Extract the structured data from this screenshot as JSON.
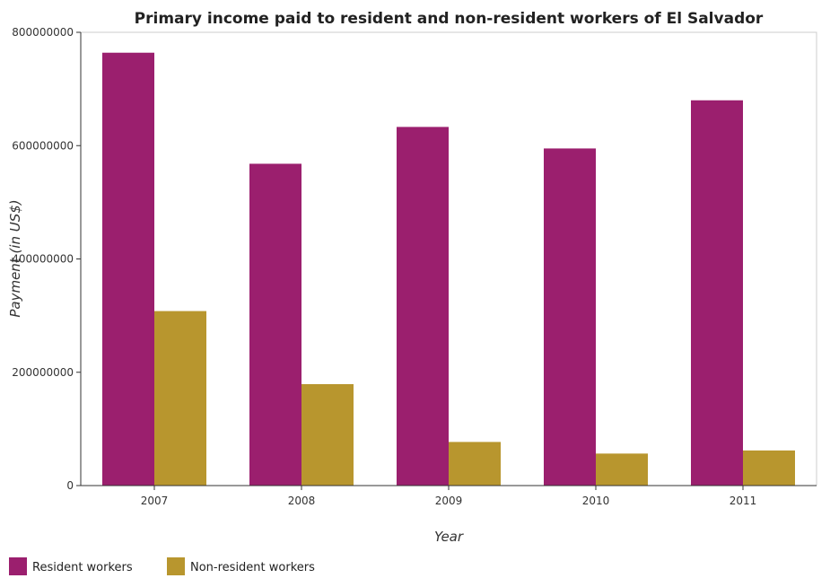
{
  "chart_data": {
    "type": "bar",
    "title": "Primary income paid to resident and non-resident workers of El Salvador",
    "xlabel": "Year",
    "ylabel": "Payment (in US$)",
    "categories": [
      "2007",
      "2008",
      "2009",
      "2010",
      "2011"
    ],
    "series": [
      {
        "name": "Resident workers",
        "color": "#9b1f6e",
        "values": [
          764000000,
          568000000,
          633000000,
          595000000,
          680000000
        ]
      },
      {
        "name": "Non-resident workers",
        "color": "#b8962e",
        "values": [
          308000000,
          179000000,
          77000000,
          56500000,
          62000000
        ]
      }
    ],
    "ylim": [
      0,
      800000000
    ],
    "yticks": [
      0,
      200000000,
      400000000,
      600000000,
      800000000
    ],
    "ytick_labels": [
      "0",
      "200000000",
      "400000000",
      "600000000",
      "800000000"
    ],
    "grid": false,
    "legend_position": "bottom-left"
  }
}
